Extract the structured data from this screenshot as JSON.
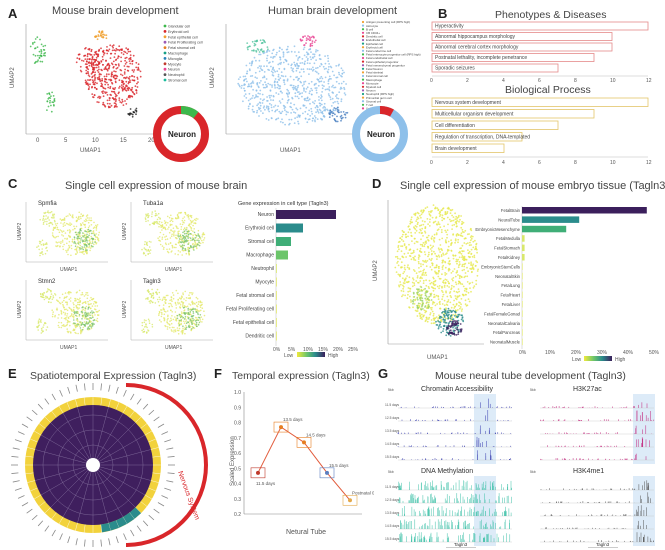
{
  "panels": {
    "A": {
      "label": "A",
      "mouse_title": "Mouse brain development",
      "human_title": "Human brain development",
      "donut_label": "Neuron",
      "xlabel": "UMAP1",
      "ylabel": "UMAP2",
      "mouse_legend": [
        "Glandular cell",
        "Erythroid cell",
        "Fetal epithelial cell",
        "Fetal Proliferating cell",
        "Fetal stromal cell",
        "Macrophage",
        "Microglia",
        "Myocyte",
        "Neuron",
        "Neutrophil",
        "Stromal cell"
      ],
      "human_legend": [
        "Antigen presenting cell (RPS high)",
        "Astrocyte",
        "B cell",
        "CB CD34+",
        "Dendritic cell",
        "Endothelial cell",
        "Epithelial cell",
        "Erythroid cell",
        "Fetal endocrine cell",
        "Fetal enterocyte progenitor cell (RPS high)",
        "Fetal endothelial cell",
        "Fetal epithelial progenitor",
        "Fetal mesenchymal progenitor",
        "Fetal Neuron",
        "Fetal skeletal",
        "Fetal stromal cell",
        "Macrophage",
        "Monocyte",
        "Myeloid cell",
        "Neuron",
        "Neutrophil (RPS high)",
        "Primordial germ cell",
        "Stromal cell",
        "T cell",
        "Unknown"
      ],
      "mouse_xticks": [
        "0",
        "5",
        "10",
        "15",
        "20"
      ],
      "colors": {
        "red": "#d9262a",
        "green": "#3db84c",
        "orange": "#f0a030",
        "blue": "#8ec0ea"
      }
    },
    "B": {
      "label": "B",
      "title1": "Phenotypes & Diseases",
      "title2": "Biological Process",
      "phenotypes": [
        {
          "name": "Hyperactivity",
          "value": 12
        },
        {
          "name": "Abnormal hippocampus morphology",
          "value": 10
        },
        {
          "name": "Abnormal cerebral cortex morphology",
          "value": 10
        },
        {
          "name": "Postnatal lethality, incomplete penetrance",
          "value": 9
        },
        {
          "name": "Sporadic seizures",
          "value": 7
        }
      ],
      "processes": [
        {
          "name": "Nervous system development",
          "value": 12
        },
        {
          "name": "Multicellular organism development",
          "value": 9
        },
        {
          "name": "Cell differentiation",
          "value": 7
        },
        {
          "name": "Regulation of transcription, DNA-templated",
          "value": 5
        },
        {
          "name": "Brain development",
          "value": 4
        }
      ],
      "xticks": [
        "0",
        "2",
        "4",
        "6",
        "8",
        "10",
        "12"
      ]
    },
    "C": {
      "label": "C",
      "title": "Single cell expression of mouse brain",
      "genes": [
        "Spmfia",
        "Tuba1a",
        "Stmn2",
        "Tagln3"
      ],
      "xlabel": "UMAP1",
      "ylabel": "UMAP2",
      "bar_title": "Gene expression in cell type (Tagln3)",
      "cell_types": [
        "Neuron",
        "Erythroid cell",
        "Stromal cell",
        "Macrophage",
        "Neutrophil",
        "Myocyte",
        "Fetal stromal cell",
        "Fetal Proliferating cell",
        "Fetal epithelial cell",
        "Dendritic cell"
      ],
      "values": [
        20,
        9,
        5,
        4,
        0,
        0,
        0,
        0,
        0,
        0
      ],
      "xticks": [
        "0%",
        "5%",
        "10%",
        "15%",
        "20%",
        "25%"
      ],
      "legend_low": "Low",
      "legend_high": "High"
    },
    "D": {
      "label": "D",
      "title": "Single cell expression of mouse embryo tissue (Tagln3)",
      "xlabel": "UMAP1",
      "ylabel": "UMAP2",
      "cell_types": [
        "FetalBrain",
        "NeuralTube",
        "EmbryonicMesenchyme",
        "FetalMedulla",
        "FetalStomach",
        "FetalKidney",
        "EmbryonicStemCells",
        "NeonatalSkin",
        "FetalLung",
        "FetalHeart",
        "FetalLiver",
        "FetalFemaleGonad",
        "NeonatalCalvaria",
        "FetalPancreas",
        "NeonatalMuscle"
      ],
      "values": [
        48,
        22,
        17,
        1,
        1,
        1,
        0,
        0,
        0,
        0,
        0,
        0,
        0,
        0,
        0
      ],
      "xticks": [
        "0%",
        "10%",
        "20%",
        "30%",
        "40%",
        "50%"
      ],
      "legend_low": "Low",
      "legend_high": "High"
    },
    "E": {
      "label": "E",
      "title": "Spatiotemporal Expression (Tagln3)",
      "arc_label": "Nervous System"
    },
    "F": {
      "label": "F",
      "title": "Temporal expression (Tagln3)",
      "ylabel": "Scaled Expression",
      "xlabel": "Netural Tube",
      "yticks": [
        "0.2",
        "0.3",
        "0.4",
        "0.5",
        "0.6",
        "0.7",
        "0.8",
        "0.9",
        "1.0"
      ],
      "ylim": [
        0.2,
        1.0
      ],
      "points": [
        {
          "label": "11.5 days",
          "value": 0.47
        },
        {
          "label": "13.5 days",
          "value": 0.77
        },
        {
          "label": "14.5 days",
          "value": 0.67
        },
        {
          "label": "15.5 days",
          "value": 0.47
        },
        {
          "label": "Postnatal 0 day",
          "value": 0.29
        }
      ]
    },
    "G": {
      "label": "G",
      "title": "Mouse neural tube development (Tagln3)",
      "tracks": [
        "Chromatin Accessibility",
        "H3K27ac",
        "DNA Methylation",
        "H3K4me1"
      ],
      "days": [
        "11.5 days",
        "12.5 days",
        "13.5 days",
        "14.5 days",
        "15.5 days"
      ],
      "scale": "5kb",
      "gene": "Tagln3"
    }
  }
}
